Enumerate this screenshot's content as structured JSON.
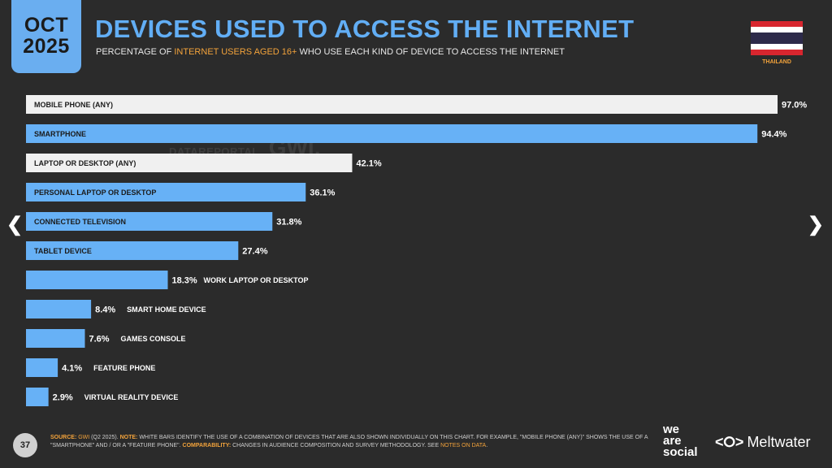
{
  "badge": {
    "month": "OCT",
    "year": "2025"
  },
  "title": "DEVICES USED TO ACCESS THE INTERNET",
  "subtitle": {
    "pre": "PERCENTAGE OF ",
    "highlight": "INTERNET USERS AGED 16+",
    "post": " WHO USE EACH KIND OF DEVICE TO ACCESS THE INTERNET"
  },
  "country": "THAILAND",
  "nav": {
    "prev": "❮",
    "next": "❯"
  },
  "watermark": {
    "datareportal": "DATAREPORTAL",
    "gwi": "GWI."
  },
  "colors": {
    "white_bar": "#f0f0f0",
    "blue_bar": "#67b1f6",
    "background": "#2b2b2b",
    "accent": "#f3a33b"
  },
  "chart_data": {
    "type": "bar",
    "orientation": "horizontal",
    "xlim": [
      0,
      100
    ],
    "categories": [
      "MOBILE PHONE (ANY)",
      "SMARTPHONE",
      "LAPTOP OR DESKTOP (ANY)",
      "PERSONAL LAPTOP OR DESKTOP",
      "CONNECTED TELEVISION",
      "TABLET DEVICE",
      "WORK LAPTOP OR DESKTOP",
      "SMART HOME DEVICE",
      "GAMES CONSOLE",
      "FEATURE PHONE",
      "VIRTUAL REALITY DEVICE"
    ],
    "values": [
      97.0,
      94.4,
      42.1,
      36.1,
      31.8,
      27.4,
      18.3,
      8.4,
      7.6,
      4.1,
      2.9
    ],
    "value_labels": [
      "97.0%",
      "94.4%",
      "42.1%",
      "36.1%",
      "31.8%",
      "27.4%",
      "18.3%",
      "8.4%",
      "7.6%",
      "4.1%",
      "2.9%"
    ],
    "bar_style": [
      "combined",
      "individual",
      "combined",
      "individual",
      "individual",
      "individual",
      "individual",
      "individual",
      "individual",
      "individual",
      "individual"
    ]
  },
  "page_number": "37",
  "footer": {
    "source_label": "SOURCE:",
    "source_gwi": "GWI",
    "source_rest": " (Q2 2025). ",
    "note_label": "NOTE:",
    "note_text": " WHITE BARS IDENTIFY THE USE OF A COMBINATION OF DEVICES THAT ARE ALSO SHOWN INDIVIDUALLY ON THIS CHART. FOR EXAMPLE, \"MOBILE PHONE (ANY)\" SHOWS THE USE OF A \"SMARTPHONE\" AND / OR A \"FEATURE PHONE\". ",
    "comp_label": "COMPARABILITY:",
    "comp_text": " CHANGES IN AUDIENCE COMPOSITION AND SURVEY METHODOLOGY. SEE ",
    "notes_link": "NOTES ON DATA",
    "end": "."
  },
  "brand": {
    "we": "we",
    "are": "are",
    "social": "social",
    "meltwater_icon": "<⭘>",
    "meltwater": "Meltwater"
  }
}
